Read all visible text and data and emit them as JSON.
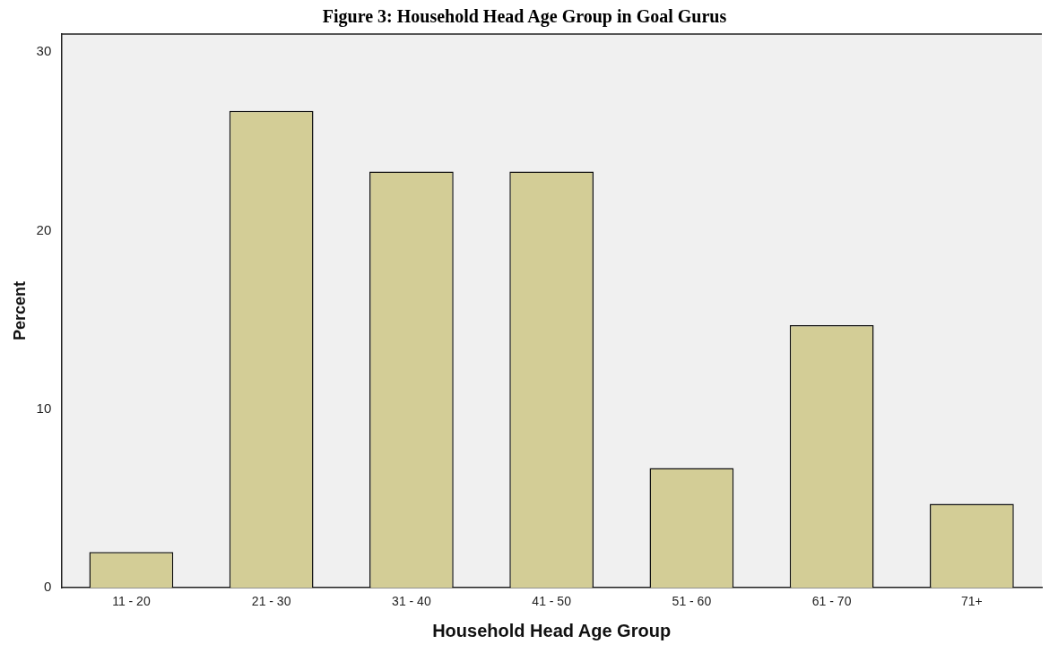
{
  "chart_data": {
    "type": "bar",
    "title": "Figure 3: Household Head Age Group in Goal Gurus",
    "xlabel": "Household Head Age Group",
    "ylabel": "Percent",
    "categories": [
      "11 - 20",
      "21 - 30",
      "31 - 40",
      "41 - 50",
      "51 - 60",
      "61 - 70",
      "71+"
    ],
    "values": [
      2.0,
      26.7,
      23.3,
      23.3,
      6.7,
      14.7,
      4.7
    ],
    "color": "#d3cd96",
    "ylim": [
      0,
      31
    ],
    "yticks": [
      0,
      10,
      20,
      30
    ],
    "grid": false,
    "legend": false
  }
}
